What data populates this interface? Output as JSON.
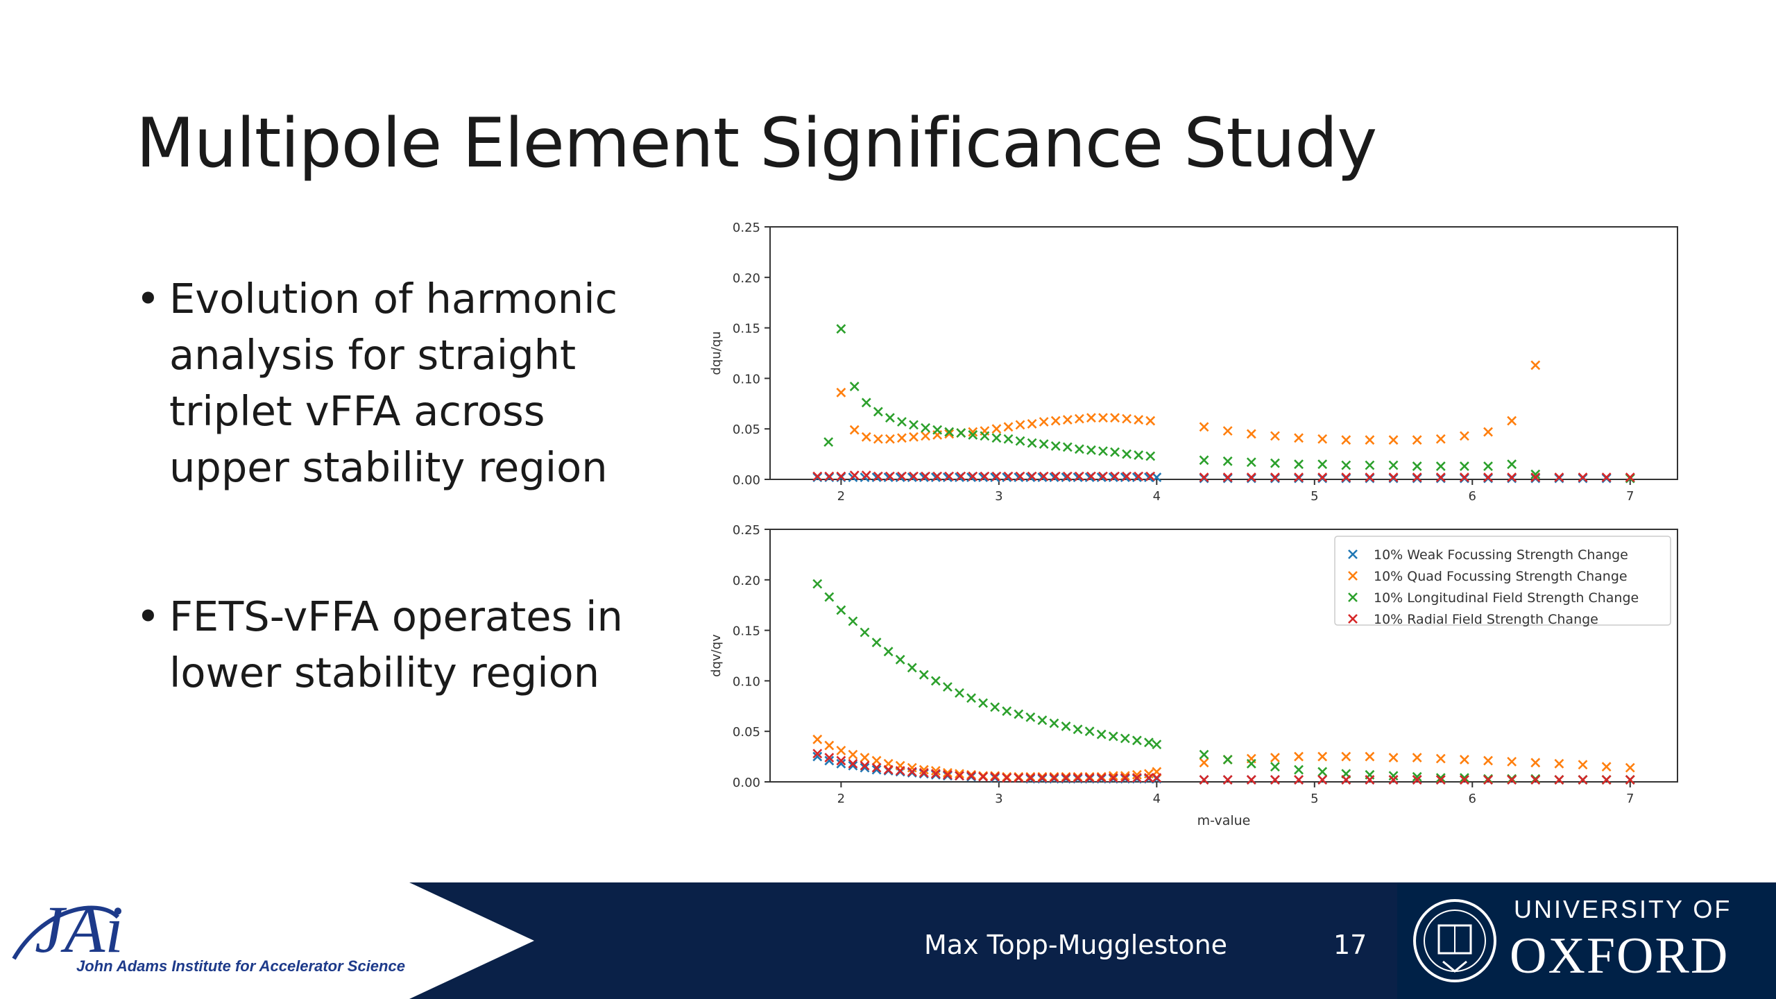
{
  "slide": {
    "title": "Multipole Element Significance Study",
    "bullets": [
      {
        "symbol": "•",
        "lines": [
          "Evolution of harmonic",
          "analysis for straight",
          "triplet vFFA across",
          "upper stability region"
        ]
      },
      {
        "symbol": "•",
        "lines": [
          "FETS-vFFA operates in",
          "lower stability region"
        ]
      }
    ]
  },
  "footer": {
    "author": "Max Topp-Mugglestone",
    "page_number": "17",
    "jai_logo_text": "JAi",
    "jai_tagline": "John Adams Institute for Accelerator Science",
    "oxford_line1": "UNIVERSITY OF",
    "oxford_line2": "OXFORD",
    "colors": {
      "navy": "#0a2148",
      "oxford_blue": "#002147",
      "jai_blue": "#1d3a8a"
    }
  },
  "chart_data": [
    {
      "type": "scatter",
      "ylabel": "dqu/qu",
      "xlabel": "",
      "xlim": [
        1.55,
        7.3
      ],
      "ylim": [
        0,
        0.25
      ],
      "xticks": [
        "2",
        "3",
        "4",
        "5",
        "6",
        "7"
      ],
      "yticks": [
        "0.00",
        "0.05",
        "0.10",
        "0.15",
        "0.20",
        "0.25"
      ],
      "marker": "x",
      "series": [
        {
          "name": "10% Weak Focussing Strength Change",
          "color": "#1f77b4",
          "x": [
            1.85,
            1.925,
            2.0,
            2.075,
            2.15,
            2.225,
            2.3,
            2.375,
            2.45,
            2.525,
            2.6,
            2.675,
            2.75,
            2.825,
            2.9,
            2.975,
            3.05,
            3.125,
            3.2,
            3.275,
            3.35,
            3.425,
            3.5,
            3.575,
            3.65,
            3.725,
            3.8,
            3.875,
            3.95,
            4.0,
            4.3,
            4.45,
            4.6,
            4.75,
            4.9,
            5.05,
            5.2,
            5.35,
            5.5,
            5.65,
            5.8,
            5.95,
            6.1,
            6.25,
            6.4,
            6.55,
            6.7,
            6.85,
            7.0
          ],
          "y": [
            0.002,
            0.002,
            0.002,
            0.002,
            0.002,
            0.002,
            0.002,
            0.002,
            0.002,
            0.002,
            0.002,
            0.002,
            0.002,
            0.002,
            0.002,
            0.002,
            0.002,
            0.002,
            0.002,
            0.002,
            0.002,
            0.002,
            0.002,
            0.002,
            0.002,
            0.002,
            0.002,
            0.002,
            0.002,
            0.002,
            0.001,
            0.001,
            0.001,
            0.001,
            0.001,
            0.001,
            0.001,
            0.001,
            0.001,
            0.001,
            0.001,
            0.001,
            0.001,
            0.001,
            0.001,
            0.001,
            0.001,
            0.001,
            0.001
          ]
        },
        {
          "name": "10% Quad Focussing Strength Change",
          "color": "#ff7f0e",
          "x": [
            2.0,
            2.085,
            2.16,
            2.235,
            2.31,
            2.385,
            2.46,
            2.535,
            2.61,
            2.685,
            2.76,
            2.835,
            2.91,
            2.985,
            3.06,
            3.135,
            3.21,
            3.285,
            3.36,
            3.435,
            3.51,
            3.585,
            3.66,
            3.735,
            3.81,
            3.885,
            3.96,
            4.3,
            4.45,
            4.6,
            4.75,
            4.9,
            5.05,
            5.2,
            5.35,
            5.5,
            5.65,
            5.8,
            5.95,
            6.1,
            6.25,
            6.4
          ],
          "y": [
            0.086,
            0.049,
            0.042,
            0.04,
            0.04,
            0.041,
            0.042,
            0.043,
            0.044,
            0.045,
            0.046,
            0.047,
            0.048,
            0.05,
            0.052,
            0.054,
            0.055,
            0.057,
            0.058,
            0.059,
            0.06,
            0.061,
            0.061,
            0.061,
            0.06,
            0.059,
            0.058,
            0.052,
            0.048,
            0.045,
            0.043,
            0.041,
            0.04,
            0.039,
            0.039,
            0.039,
            0.039,
            0.04,
            0.043,
            0.047,
            0.058,
            0.113
          ]
        },
        {
          "name": "10% Longitudinal Field Strength Change",
          "color": "#2ca02c",
          "x": [
            1.92,
            2.0,
            2.085,
            2.16,
            2.235,
            2.31,
            2.385,
            2.46,
            2.535,
            2.61,
            2.685,
            2.76,
            2.835,
            2.91,
            2.985,
            3.06,
            3.135,
            3.21,
            3.285,
            3.36,
            3.435,
            3.51,
            3.585,
            3.66,
            3.735,
            3.81,
            3.885,
            3.96,
            4.3,
            4.45,
            4.6,
            4.75,
            4.9,
            5.05,
            5.2,
            5.35,
            5.5,
            5.65,
            5.8,
            5.95,
            6.1,
            6.25,
            6.4,
            7.0
          ],
          "y": [
            0.037,
            0.149,
            0.092,
            0.076,
            0.067,
            0.061,
            0.057,
            0.054,
            0.051,
            0.049,
            0.047,
            0.046,
            0.044,
            0.043,
            0.041,
            0.04,
            0.038,
            0.036,
            0.035,
            0.033,
            0.032,
            0.03,
            0.029,
            0.028,
            0.027,
            0.025,
            0.024,
            0.023,
            0.019,
            0.018,
            0.017,
            0.016,
            0.015,
            0.015,
            0.014,
            0.014,
            0.014,
            0.013,
            0.013,
            0.013,
            0.013,
            0.015,
            0.005,
            0.001
          ]
        },
        {
          "name": "10% Radial Field Strength Change",
          "color": "#d62728",
          "x": [
            1.85,
            1.925,
            2.0,
            2.085,
            2.16,
            2.235,
            2.31,
            2.385,
            2.46,
            2.535,
            2.61,
            2.685,
            2.76,
            2.835,
            2.91,
            2.985,
            3.06,
            3.135,
            3.21,
            3.285,
            3.36,
            3.435,
            3.51,
            3.585,
            3.66,
            3.735,
            3.81,
            3.885,
            3.96,
            4.3,
            4.45,
            4.6,
            4.75,
            4.9,
            5.05,
            5.2,
            5.35,
            5.5,
            5.65,
            5.8,
            5.95,
            6.1,
            6.25,
            6.4,
            6.55,
            6.7,
            6.85,
            7.0
          ],
          "y": [
            0.003,
            0.003,
            0.003,
            0.004,
            0.004,
            0.003,
            0.003,
            0.003,
            0.003,
            0.003,
            0.003,
            0.003,
            0.003,
            0.003,
            0.003,
            0.003,
            0.003,
            0.003,
            0.003,
            0.003,
            0.003,
            0.003,
            0.003,
            0.003,
            0.003,
            0.003,
            0.003,
            0.003,
            0.003,
            0.002,
            0.002,
            0.002,
            0.002,
            0.002,
            0.002,
            0.002,
            0.002,
            0.002,
            0.002,
            0.002,
            0.002,
            0.002,
            0.002,
            0.002,
            0.002,
            0.002,
            0.002,
            0.002
          ]
        }
      ]
    },
    {
      "type": "scatter",
      "ylabel": "dqv/qv",
      "xlabel": "m-value",
      "xlim": [
        1.55,
        7.3
      ],
      "ylim": [
        0,
        0.25
      ],
      "xticks": [
        "2",
        "3",
        "4",
        "5",
        "6",
        "7"
      ],
      "yticks": [
        "0.00",
        "0.05",
        "0.10",
        "0.15",
        "0.20",
        "0.25"
      ],
      "marker": "x",
      "legend": "top-right",
      "series": [
        {
          "name": "10% Weak Focussing Strength Change",
          "color": "#1f77b4",
          "x": [
            1.85,
            1.925,
            2.0,
            2.075,
            2.15,
            2.225,
            2.3,
            2.375,
            2.45,
            2.525,
            2.6,
            2.675,
            2.75,
            2.825,
            2.9,
            2.975,
            3.05,
            3.125,
            3.2,
            3.275,
            3.35,
            3.425,
            3.5,
            3.575,
            3.65,
            3.725,
            3.8,
            3.875,
            3.95,
            4.0,
            4.3,
            4.45,
            4.6,
            4.75,
            4.9,
            5.05,
            5.2,
            5.35,
            5.5,
            5.65,
            5.8,
            5.95,
            6.1,
            6.25,
            6.4,
            6.55,
            6.7,
            6.85,
            7.0
          ],
          "y": [
            0.025,
            0.021,
            0.018,
            0.016,
            0.014,
            0.012,
            0.011,
            0.01,
            0.009,
            0.008,
            0.007,
            0.006,
            0.006,
            0.005,
            0.005,
            0.004,
            0.004,
            0.004,
            0.003,
            0.003,
            0.003,
            0.003,
            0.003,
            0.003,
            0.003,
            0.003,
            0.003,
            0.003,
            0.003,
            0.003,
            0.002,
            0.002,
            0.002,
            0.002,
            0.002,
            0.002,
            0.002,
            0.002,
            0.002,
            0.002,
            0.002,
            0.002,
            0.002,
            0.002,
            0.002,
            0.002,
            0.002,
            0.002,
            0.002
          ]
        },
        {
          "name": "10% Quad Focussing Strength Change",
          "color": "#ff7f0e",
          "x": [
            1.85,
            1.925,
            2.0,
            2.075,
            2.15,
            2.225,
            2.3,
            2.375,
            2.45,
            2.525,
            2.6,
            2.675,
            2.75,
            2.825,
            2.9,
            2.975,
            3.05,
            3.125,
            3.2,
            3.275,
            3.35,
            3.425,
            3.5,
            3.575,
            3.65,
            3.725,
            3.8,
            3.875,
            3.95,
            4.0,
            4.3,
            4.45,
            4.6,
            4.75,
            4.9,
            5.05,
            5.2,
            5.35,
            5.5,
            5.65,
            5.8,
            5.95,
            6.1,
            6.25,
            6.4,
            6.55,
            6.7,
            6.85,
            7.0
          ],
          "y": [
            0.042,
            0.036,
            0.031,
            0.027,
            0.024,
            0.021,
            0.018,
            0.016,
            0.014,
            0.012,
            0.011,
            0.009,
            0.008,
            0.007,
            0.006,
            0.006,
            0.005,
            0.005,
            0.005,
            0.005,
            0.005,
            0.005,
            0.005,
            0.005,
            0.005,
            0.006,
            0.006,
            0.007,
            0.008,
            0.01,
            0.019,
            0.022,
            0.023,
            0.024,
            0.025,
            0.025,
            0.025,
            0.025,
            0.024,
            0.024,
            0.023,
            0.022,
            0.021,
            0.02,
            0.019,
            0.018,
            0.017,
            0.015,
            0.014
          ]
        },
        {
          "name": "10% Longitudinal Field Strength Change",
          "color": "#2ca02c",
          "x": [
            1.85,
            1.925,
            2.0,
            2.075,
            2.15,
            2.225,
            2.3,
            2.375,
            2.45,
            2.525,
            2.6,
            2.675,
            2.75,
            2.825,
            2.9,
            2.975,
            3.05,
            3.125,
            3.2,
            3.275,
            3.35,
            3.425,
            3.5,
            3.575,
            3.65,
            3.725,
            3.8,
            3.875,
            3.95,
            4.0,
            4.3,
            4.45,
            4.6,
            4.75,
            4.9,
            5.05,
            5.2,
            5.35,
            5.5,
            5.65,
            5.8,
            5.95,
            6.1,
            6.25,
            6.4,
            6.55,
            6.7,
            6.85,
            7.0
          ],
          "y": [
            0.196,
            0.183,
            0.17,
            0.159,
            0.148,
            0.138,
            0.129,
            0.121,
            0.113,
            0.106,
            0.1,
            0.094,
            0.088,
            0.083,
            0.078,
            0.074,
            0.07,
            0.067,
            0.064,
            0.061,
            0.058,
            0.055,
            0.052,
            0.05,
            0.047,
            0.045,
            0.043,
            0.041,
            0.039,
            0.037,
            0.027,
            0.022,
            0.018,
            0.015,
            0.012,
            0.01,
            0.008,
            0.007,
            0.006,
            0.005,
            0.004,
            0.004,
            0.003,
            0.003,
            0.003,
            0.002,
            0.002,
            0.002,
            0.002
          ]
        },
        {
          "name": "10% Radial Field Strength Change",
          "color": "#d62728",
          "x": [
            1.85,
            1.925,
            2.0,
            2.075,
            2.15,
            2.225,
            2.3,
            2.375,
            2.45,
            2.525,
            2.6,
            2.675,
            2.75,
            2.825,
            2.9,
            2.975,
            3.05,
            3.125,
            3.2,
            3.275,
            3.35,
            3.425,
            3.5,
            3.575,
            3.65,
            3.725,
            3.8,
            3.875,
            3.95,
            4.0,
            4.3,
            4.45,
            4.6,
            4.75,
            4.9,
            5.05,
            5.2,
            5.35,
            5.5,
            5.65,
            5.8,
            5.95,
            6.1,
            6.25,
            6.4,
            6.55,
            6.7,
            6.85,
            7.0
          ],
          "y": [
            0.028,
            0.024,
            0.021,
            0.018,
            0.016,
            0.014,
            0.012,
            0.011,
            0.01,
            0.009,
            0.008,
            0.007,
            0.006,
            0.006,
            0.005,
            0.005,
            0.004,
            0.004,
            0.004,
            0.004,
            0.004,
            0.004,
            0.004,
            0.004,
            0.004,
            0.004,
            0.004,
            0.004,
            0.004,
            0.004,
            0.002,
            0.002,
            0.002,
            0.002,
            0.002,
            0.002,
            0.002,
            0.002,
            0.002,
            0.002,
            0.002,
            0.002,
            0.002,
            0.002,
            0.002,
            0.002,
            0.002,
            0.002,
            0.002
          ]
        }
      ]
    }
  ]
}
